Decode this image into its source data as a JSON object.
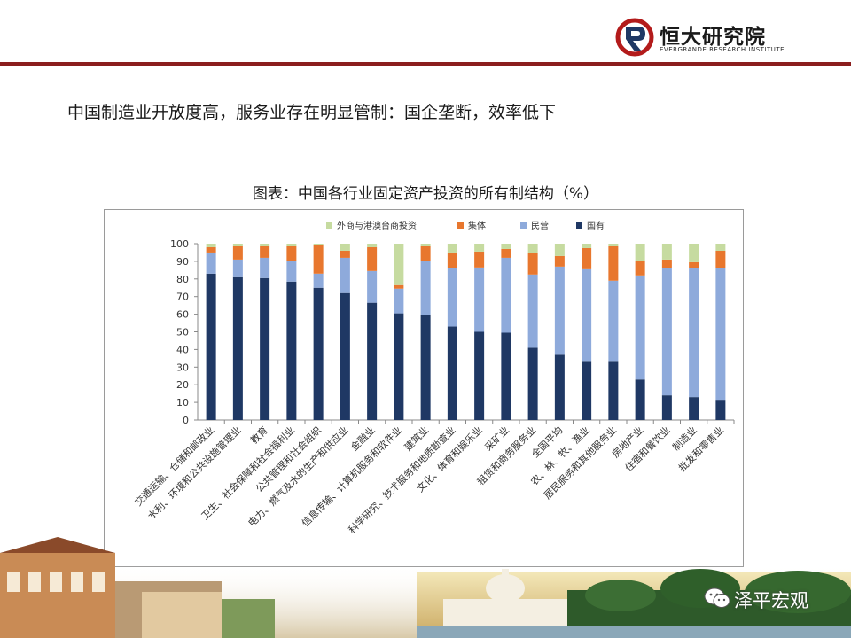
{
  "header": {
    "logo_text": "恒大研究院",
    "logo_subtext": "EVERGRANDE RESEARCH INSTITUTE"
  },
  "heading": "中国制造业开放度高，服务业存在明显管制：国企垄断，效率低下",
  "chart_title": "图表：中国各行业固定资产投资的所有制结构（%）",
  "watermark": "泽平宏观",
  "colors": {
    "brand_red": "#8b1e1e",
    "state": "#1f3864",
    "private": "#8eaadb",
    "collective": "#e8772e",
    "foreign": "#c6dba0"
  },
  "chart_data": {
    "type": "bar",
    "stacked": true,
    "categories": [
      "交通运输、仓储和邮政业",
      "水利、环境和公共设施管理业",
      "教育",
      "卫生、社会保障和社会福利业",
      "公共管理和社会组织",
      "电力、燃气及水的生产和供应业",
      "金融业",
      "信息传输、计算机服务和软件业",
      "建筑业",
      "科学研究、技术服务和地质勘查业",
      "文化、体育和娱乐业",
      "采矿业",
      "租赁和商务服务业",
      "全国平均",
      "农、林、牧、渔业",
      "居民服务和其他服务业",
      "房地产业",
      "住宿和餐饮业",
      "制造业",
      "批发和零售业"
    ],
    "series": [
      {
        "name": "国有",
        "color": "#1f3864",
        "values": [
          83,
          81,
          80.5,
          78.5,
          75,
          72,
          66.5,
          60.5,
          59.5,
          53,
          50,
          49.5,
          41,
          37,
          33.5,
          33.5,
          23,
          14,
          13,
          11.5
        ]
      },
      {
        "name": "民营",
        "color": "#8eaadb",
        "values": [
          12,
          10,
          11.5,
          11.5,
          8,
          20,
          18,
          14,
          30.5,
          33,
          36.5,
          42.5,
          41.5,
          50,
          52,
          45.5,
          59,
          72,
          73,
          74.5
        ]
      },
      {
        "name": "集体",
        "color": "#e8772e",
        "values": [
          3,
          7.5,
          6.5,
          8.5,
          16.5,
          4,
          13.5,
          2,
          8.5,
          9,
          9,
          5,
          12,
          6,
          12,
          19.5,
          8,
          5,
          3.5,
          10
        ]
      },
      {
        "name": "外商与港澳台商投资",
        "color": "#c6dba0",
        "values": [
          2,
          1.5,
          1.5,
          1.5,
          0.5,
          4,
          2,
          23.5,
          1.5,
          5,
          4.5,
          3,
          5.5,
          7,
          2.5,
          1.5,
          10,
          9,
          10.5,
          4
        ]
      }
    ],
    "legend_order": [
      "外商与港澳台商投资",
      "集体",
      "民营",
      "国有"
    ],
    "legend_position": "top",
    "ylim": [
      0,
      100
    ],
    "yticks": [
      0,
      10,
      20,
      30,
      40,
      50,
      60,
      70,
      80,
      90,
      100
    ],
    "grid": false
  }
}
